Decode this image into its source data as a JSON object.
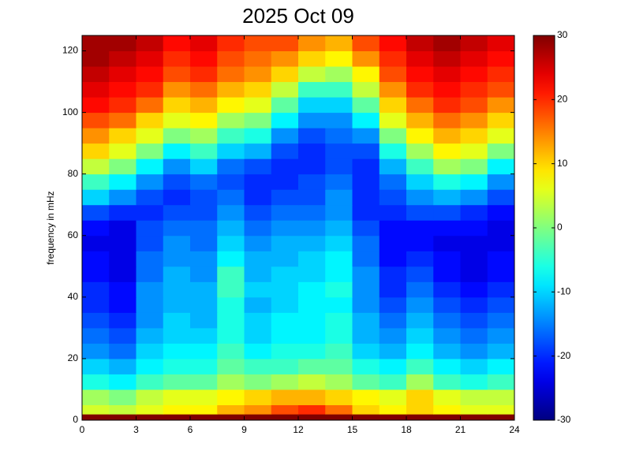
{
  "chart_data": {
    "type": "heatmap",
    "title": "2025 Oct 09",
    "y_label": "frequency in mHz",
    "xlim": [
      0,
      24
    ],
    "xticks": [
      0,
      3,
      6,
      9,
      12,
      15,
      18,
      21,
      24
    ],
    "ylim": [
      0,
      125
    ],
    "yticks": [
      0,
      20,
      40,
      60,
      80,
      100,
      120
    ],
    "clim": [
      -30,
      30
    ],
    "cticks": [
      -30,
      -20,
      -10,
      0,
      10,
      20,
      30
    ],
    "colormap": "jet",
    "x_edges": [
      0,
      1.5,
      3,
      4.5,
      6,
      7.5,
      9,
      10.5,
      12,
      13.5,
      15,
      16.5,
      18,
      19.5,
      21,
      22.5,
      24
    ],
    "y_edges": [
      0,
      2,
      5,
      10,
      15,
      20,
      25,
      30,
      35,
      40,
      45,
      50,
      55,
      60,
      65,
      70,
      75,
      80,
      85,
      90,
      95,
      100,
      105,
      110,
      115,
      120,
      125
    ],
    "z": [
      [
        30,
        30,
        30,
        30,
        30,
        30,
        30,
        30,
        30,
        30,
        30,
        30,
        30,
        30,
        30,
        30
      ],
      [
        5,
        4,
        6,
        8,
        8,
        12,
        14,
        18,
        20,
        16,
        10,
        8,
        10,
        8,
        6,
        6
      ],
      [
        2,
        0,
        4,
        6,
        6,
        8,
        10,
        12,
        12,
        10,
        8,
        6,
        10,
        6,
        4,
        4
      ],
      [
        -6,
        -8,
        -4,
        -2,
        -2,
        2,
        0,
        2,
        4,
        2,
        -2,
        -4,
        2,
        -4,
        -6,
        -4
      ],
      [
        -10,
        -12,
        -8,
        -6,
        -6,
        -2,
        -4,
        -4,
        -2,
        -2,
        -6,
        -8,
        -4,
        -8,
        -10,
        -8
      ],
      [
        -14,
        -16,
        -10,
        -8,
        -8,
        -4,
        -8,
        -6,
        -6,
        -4,
        -10,
        -12,
        -8,
        -12,
        -14,
        -12
      ],
      [
        -16,
        -18,
        -12,
        -10,
        -10,
        -6,
        -10,
        -8,
        -8,
        -6,
        -12,
        -14,
        -10,
        -14,
        -16,
        -14
      ],
      [
        -18,
        -20,
        -14,
        -10,
        -12,
        -6,
        -10,
        -8,
        -8,
        -6,
        -12,
        -16,
        -12,
        -16,
        -18,
        -16
      ],
      [
        -20,
        -22,
        -14,
        -12,
        -12,
        -6,
        -12,
        -10,
        -8,
        -8,
        -14,
        -18,
        -14,
        -18,
        -20,
        -18
      ],
      [
        -20,
        -22,
        -14,
        -12,
        -12,
        -4,
        -10,
        -10,
        -8,
        -6,
        -14,
        -20,
        -16,
        -20,
        -22,
        -20
      ],
      [
        -22,
        -24,
        -16,
        -12,
        -14,
        -4,
        -12,
        -10,
        -10,
        -8,
        -14,
        -20,
        -18,
        -22,
        -24,
        -22
      ],
      [
        -22,
        -24,
        -16,
        -14,
        -14,
        -8,
        -12,
        -12,
        -10,
        -8,
        -16,
        -22,
        -20,
        -22,
        -24,
        -22
      ],
      [
        -24,
        -24,
        -18,
        -14,
        -16,
        -10,
        -14,
        -12,
        -12,
        -10,
        -16,
        -22,
        -22,
        -24,
        -24,
        -24
      ],
      [
        -22,
        -24,
        -18,
        -16,
        -16,
        -12,
        -16,
        -14,
        -14,
        -12,
        -18,
        -22,
        -22,
        -22,
        -22,
        -24
      ],
      [
        -18,
        -20,
        -20,
        -18,
        -18,
        -14,
        -18,
        -16,
        -16,
        -14,
        -20,
        -20,
        -18,
        -18,
        -20,
        -22
      ],
      [
        -10,
        -14,
        -18,
        -20,
        -18,
        -16,
        -20,
        -18,
        -18,
        -14,
        -20,
        -18,
        -14,
        -12,
        -14,
        -18
      ],
      [
        -4,
        -8,
        -14,
        -18,
        -16,
        -18,
        -20,
        -20,
        -18,
        -16,
        -20,
        -16,
        -10,
        -6,
        -8,
        -14
      ],
      [
        4,
        0,
        -8,
        -14,
        -10,
        -16,
        -18,
        -20,
        -20,
        -18,
        -20,
        -12,
        -4,
        2,
        0,
        -8
      ],
      [
        10,
        6,
        0,
        -8,
        -4,
        -10,
        -12,
        -18,
        -20,
        -18,
        -18,
        -6,
        2,
        8,
        6,
        0
      ],
      [
        14,
        10,
        6,
        0,
        2,
        -4,
        -6,
        -14,
        -18,
        -16,
        -14,
        0,
        8,
        12,
        10,
        6
      ],
      [
        18,
        16,
        10,
        6,
        8,
        2,
        0,
        -8,
        -14,
        -14,
        -8,
        6,
        12,
        16,
        14,
        10
      ],
      [
        22,
        20,
        16,
        10,
        12,
        8,
        6,
        -2,
        -10,
        -10,
        -2,
        10,
        16,
        20,
        18,
        14
      ],
      [
        24,
        22,
        20,
        14,
        16,
        12,
        10,
        4,
        -4,
        -4,
        4,
        14,
        20,
        22,
        20,
        18
      ],
      [
        26,
        24,
        22,
        18,
        20,
        16,
        14,
        10,
        4,
        2,
        8,
        18,
        22,
        24,
        22,
        20
      ],
      [
        28,
        26,
        24,
        20,
        22,
        18,
        16,
        14,
        10,
        8,
        14,
        20,
        24,
        26,
        24,
        22
      ],
      [
        28,
        28,
        26,
        22,
        24,
        20,
        18,
        18,
        14,
        12,
        18,
        22,
        26,
        28,
        26,
        24
      ]
    ]
  }
}
